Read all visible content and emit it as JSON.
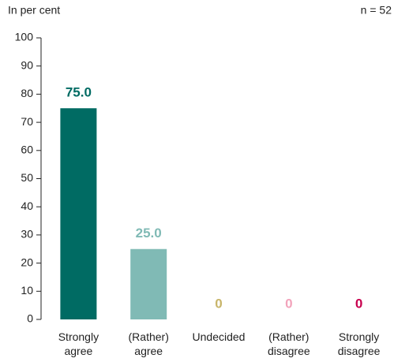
{
  "chart_data": {
    "type": "bar",
    "annotations": [
      "In per cent",
      "n = 52"
    ],
    "categories": [
      "Strongly agree",
      "(Rather) agree",
      "Undecided",
      "(Rather) disagree",
      "Strongly disagree"
    ],
    "values": [
      75,
      25,
      0,
      0,
      0
    ],
    "value_labels": [
      "75.0",
      "25.0",
      "0",
      "0",
      "0"
    ],
    "colors": [
      "#006b63",
      "#80bab5",
      "#c8b56a",
      "#f2a3bb",
      "#c8004e"
    ],
    "ylim": [
      0,
      100
    ],
    "yticks": [
      0,
      10,
      20,
      30,
      40,
      50,
      60,
      70,
      80,
      90,
      100
    ],
    "grid": false
  }
}
